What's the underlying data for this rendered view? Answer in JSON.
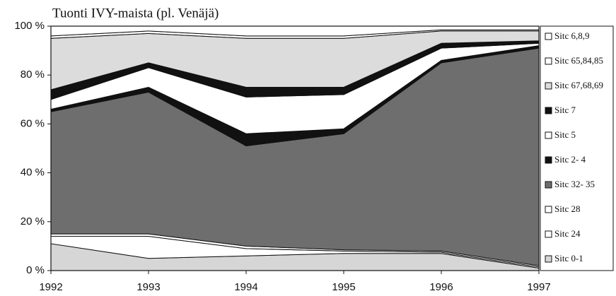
{
  "chart_data": {
    "type": "stacked-area",
    "title": "Tuonti IVY-maista (pl. Venäjä)",
    "x": [
      1992,
      1993,
      1994,
      1995,
      1996,
      1997
    ],
    "xlim": [
      1992,
      1997
    ],
    "xticks": [
      1992,
      1993,
      1994,
      1995,
      1996,
      1997
    ],
    "ylim": [
      0,
      100
    ],
    "yticks": [
      {
        "value": 0,
        "label": "0 %"
      },
      {
        "value": 20,
        "label": "20 %"
      },
      {
        "value": 40,
        "label": "40 %"
      },
      {
        "value": 60,
        "label": "60 %"
      },
      {
        "value": 80,
        "label": "80 %"
      },
      {
        "value": 100,
        "label": "100 %"
      }
    ],
    "series": [
      {
        "name": "Sitc 0-1",
        "color": "#d6d6d6",
        "values": [
          11,
          5,
          6,
          7,
          7,
          1
        ]
      },
      {
        "name": "Sitc 24",
        "color": "#ffffff",
        "values": [
          3,
          9,
          3,
          1,
          0.5,
          0.5
        ]
      },
      {
        "name": "Sitc 28",
        "color": "#ffffff",
        "values": [
          1,
          1,
          1,
          0.5,
          0.5,
          0.5
        ]
      },
      {
        "name": "Sitc 32- 35",
        "color": "#6e6e6e",
        "values": [
          50,
          58,
          41,
          47.5,
          77,
          89
        ]
      },
      {
        "name": "Sitc 2- 4",
        "color": "#111111",
        "values": [
          1,
          2,
          5,
          2,
          1,
          1
        ]
      },
      {
        "name": "Sitc 5",
        "color": "#ffffff",
        "values": [
          4,
          8,
          15,
          14,
          5,
          1
        ]
      },
      {
        "name": "Sitc 7",
        "color": "#111111",
        "values": [
          4,
          2,
          4,
          3,
          2,
          1
        ]
      },
      {
        "name": "Sitc 67,68,69",
        "color": "#dcdcdc",
        "values": [
          21,
          12,
          20,
          20,
          5,
          4
        ]
      },
      {
        "name": "Sitc 65,84,85",
        "color": "#ffffff",
        "values": [
          1,
          1,
          1,
          1,
          0.5,
          0.5
        ]
      },
      {
        "name": "Sitc 6,8,9",
        "color": "#ffffff",
        "values": [
          4,
          2,
          4,
          4,
          1.5,
          1.5
        ]
      }
    ]
  }
}
